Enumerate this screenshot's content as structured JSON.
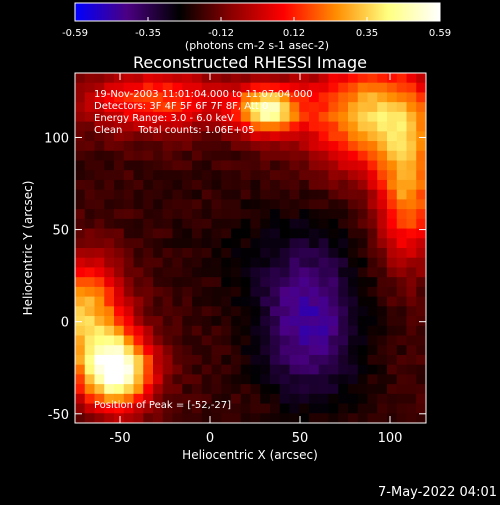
{
  "chart_data": {
    "type": "heatmap",
    "title": "Reconstructed RHESSI Image",
    "xlabel": "Heliocentric X (arcsec)",
    "ylabel": "Heliocentric Y (arcsec)",
    "xlim": [
      -75,
      120
    ],
    "ylim": [
      -55,
      135
    ],
    "xticks": [
      -50,
      0,
      50,
      100
    ],
    "yticks": [
      -50,
      0,
      50,
      100
    ],
    "colorbar": {
      "min": -0.59,
      "max": 0.59,
      "ticks": [
        "-0.59",
        "-0.35",
        "-0.12",
        "0.12",
        "0.35",
        "0.59"
      ],
      "units": "(photons cm-2 s-1 asec-2)",
      "colors": [
        "#0000ff",
        "#4b0082",
        "#000000",
        "#8b0000",
        "#ff0000",
        "#ff8c00",
        "#ffff80",
        "#ffffff"
      ]
    },
    "annotations": [
      "19-Nov-2003 11:01:04.000 to 11:07:04.000",
      "Detectors: 3F 4F 5F 6F 7F 8F, Att 0",
      "Energy Range: 3.0 - 6.0 keV",
      "Clean     Total counts: 1.06E+05"
    ],
    "peak_text": "Position of Peak = [-52,-27]",
    "sources": [
      {
        "x": -52,
        "y": -27,
        "value": 0.59,
        "sx": 14,
        "sy": 14
      },
      {
        "x": -70,
        "y": 5,
        "value": 0.32,
        "sx": 16,
        "sy": 20
      },
      {
        "x": 32,
        "y": 115,
        "value": 0.44,
        "sx": 12,
        "sy": 9
      },
      {
        "x": 90,
        "y": 112,
        "value": 0.34,
        "sx": 26,
        "sy": 20
      },
      {
        "x": 110,
        "y": 70,
        "value": 0.24,
        "sx": 12,
        "sy": 26
      },
      {
        "x": -30,
        "y": 120,
        "value": 0.16,
        "sx": 30,
        "sy": 12
      },
      {
        "x": 55,
        "y": 0,
        "value": -0.46,
        "sx": 20,
        "sy": 30
      },
      {
        "x": 20,
        "y": 40,
        "value": -0.22,
        "sx": 35,
        "sy": 22
      }
    ],
    "background": -0.18
  },
  "footer": {
    "date": "7-May-2022 04:01"
  }
}
